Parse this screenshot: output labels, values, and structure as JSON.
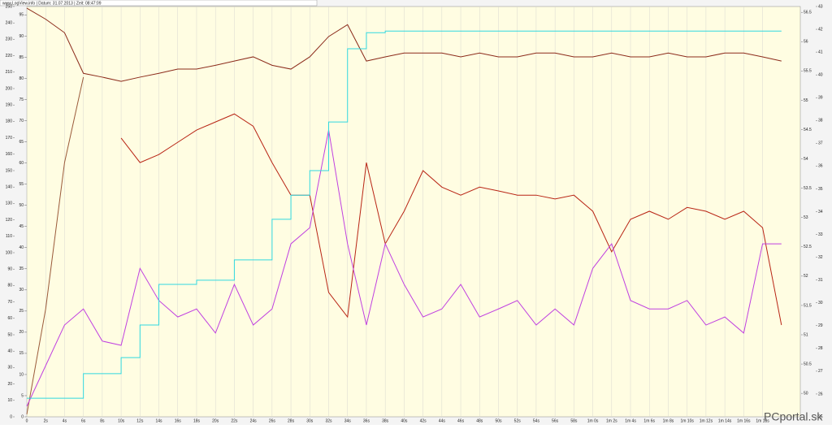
{
  "header": {
    "text": "www.LogView.info  |  Datum: 31.07.2013  |  Zeit: 08:47:09"
  },
  "watermark": "PCportal.sk",
  "chart_data": {
    "type": "line",
    "background": "#fffde2",
    "grid": true,
    "x": [
      0,
      2,
      4,
      6,
      8,
      10,
      12,
      14,
      16,
      18,
      20,
      22,
      24,
      26,
      28,
      30,
      32,
      34,
      36,
      38,
      40,
      42,
      44,
      46,
      48,
      50,
      52,
      54,
      56,
      58,
      60,
      62,
      64,
      66,
      68,
      70,
      72,
      74,
      76,
      78,
      80
    ],
    "xlim": [
      0,
      82
    ],
    "xticks": [
      0,
      {
        "value": 2,
        "label": "2s"
      },
      {
        "value": 4,
        "label": "4s"
      },
      {
        "value": 6,
        "label": "6s"
      },
      {
        "value": 8,
        "label": "8s"
      },
      {
        "value": 10,
        "label": "10s"
      },
      {
        "value": 12,
        "label": "12s"
      },
      {
        "value": 14,
        "label": "14s"
      },
      {
        "value": 16,
        "label": "16s"
      },
      {
        "value": 18,
        "label": "18s"
      },
      {
        "value": 20,
        "label": "20s"
      },
      {
        "value": 22,
        "label": "22s"
      },
      {
        "value": 24,
        "label": "24s"
      },
      {
        "value": 26,
        "label": "26s"
      },
      {
        "value": 28,
        "label": "28s"
      },
      {
        "value": 30,
        "label": "30s"
      },
      {
        "value": 32,
        "label": "32s"
      },
      {
        "value": 34,
        "label": "34s"
      },
      {
        "value": 36,
        "label": "36s"
      },
      {
        "value": 38,
        "label": "38s"
      },
      {
        "value": 40,
        "label": "40s"
      },
      {
        "value": 42,
        "label": "42s"
      },
      {
        "value": 44,
        "label": "44s"
      },
      {
        "value": 46,
        "label": "46s"
      },
      {
        "value": 48,
        "label": "48s"
      },
      {
        "value": 50,
        "label": "50s"
      },
      {
        "value": 52,
        "label": "52s"
      },
      {
        "value": 54,
        "label": "54s"
      },
      {
        "value": 56,
        "label": "56s"
      },
      {
        "value": 58,
        "label": "58s"
      },
      {
        "value": 60,
        "label": "1m 0s"
      },
      {
        "value": 62,
        "label": "1m 2s"
      },
      {
        "value": 64,
        "label": "1m 4s"
      },
      {
        "value": 66,
        "label": "1m 6s"
      },
      {
        "value": 68,
        "label": "1m 8s"
      },
      {
        "value": 70,
        "label": "1m 10s"
      },
      {
        "value": 72,
        "label": "1m 12s"
      },
      {
        "value": 74,
        "label": "1m 14s"
      },
      {
        "value": 76,
        "label": "1m 16s"
      },
      {
        "value": 78,
        "label": "1m 18s"
      }
    ],
    "ylim": [
      0,
      97
    ],
    "yticks": [
      0,
      5,
      10,
      15,
      20,
      25,
      30,
      35,
      40,
      45,
      50,
      55,
      60,
      65,
      70,
      75,
      80,
      85,
      90,
      95
    ],
    "extra_axes": [
      {
        "side": "left",
        "lim": [
          0,
          250
        ],
        "ticks": [
          0,
          10,
          20,
          30,
          40,
          50,
          60,
          70,
          80,
          90,
          100,
          110,
          120,
          130,
          140,
          150,
          160,
          170,
          180,
          190,
          200,
          210,
          220,
          230,
          240,
          250
        ]
      },
      {
        "side": "right",
        "lim": [
          49.6,
          56.6
        ],
        "ticks": [
          50,
          50.5,
          51,
          51.5,
          52,
          52.5,
          53,
          53.5,
          54,
          54.5,
          55,
          55.5,
          56,
          56.5
        ]
      },
      {
        "side": "right",
        "lim": [
          25,
          43
        ],
        "ticks": [
          25,
          26,
          27,
          28,
          29,
          30,
          31,
          32,
          33,
          34,
          35,
          36,
          37,
          38,
          39,
          40,
          41,
          42,
          43
        ]
      }
    ],
    "series": [
      {
        "color": "#8b2a1a",
        "style": "line",
        "values": [
          96.6,
          94,
          90.8,
          81.2,
          80.3,
          79.3,
          80.3,
          81.2,
          82.2,
          82.2,
          83.1,
          84.1,
          85.1,
          83.1,
          82.2,
          85.1,
          89.9,
          92.7,
          84.1,
          85.1,
          86,
          86,
          86,
          85.1,
          86,
          85.1,
          85.1,
          86,
          86,
          85.1,
          85.1,
          86,
          85.1,
          85.1,
          86,
          85.1,
          85.1,
          86,
          86,
          85.1,
          84.1
        ]
      },
      {
        "color": "#b82414",
        "style": "line",
        "values": [
          null,
          null,
          null,
          null,
          null,
          65.9,
          60.1,
          62,
          64.9,
          67.8,
          69.7,
          71.6,
          68.7,
          60.1,
          52.4,
          52.4,
          29.4,
          23.6,
          60.1,
          40.9,
          48.6,
          58.2,
          54.3,
          52.4,
          54.3,
          53.4,
          52.4,
          52.4,
          51.5,
          52.4,
          48.6,
          39,
          46.7,
          48.6,
          46.7,
          49.5,
          48.6,
          46.7,
          48.6,
          44.7,
          21.7
        ]
      },
      {
        "color": "#9a5a3a",
        "style": "line",
        "values": [
          0.6,
          25.5,
          60.1,
          80.3,
          null,
          null,
          null,
          null,
          null,
          null,
          null,
          null,
          null,
          null,
          null,
          null,
          null,
          null,
          null,
          null,
          null,
          null,
          null,
          null,
          null,
          null,
          null,
          null,
          null,
          null,
          null,
          null,
          null,
          null,
          null,
          null,
          null,
          null,
          null,
          null,
          null
        ]
      },
      {
        "color": "#c040e0",
        "style": "line",
        "values": [
          2.5,
          12.1,
          21.7,
          25.5,
          17.9,
          16.9,
          35.1,
          27.5,
          23.6,
          25.5,
          19.8,
          31.3,
          21.7,
          25.5,
          40.9,
          44.7,
          67.8,
          40.9,
          21.7,
          40.9,
          31.3,
          23.6,
          25.5,
          31.3,
          23.6,
          25.5,
          27.5,
          21.7,
          25.5,
          21.7,
          35.1,
          40.9,
          27.5,
          25.5,
          25.5,
          27.5,
          21.7,
          23.6,
          19.8,
          40.9,
          40.9
        ]
      },
      {
        "color": "#30d8e0",
        "style": "step",
        "values": [
          4.4,
          4.4,
          4.4,
          10.2,
          10.2,
          14,
          21.7,
          31.3,
          31.3,
          32.3,
          32.3,
          37.1,
          37.1,
          46.7,
          52.4,
          58.2,
          69.7,
          87,
          90.8,
          91.2,
          91.2,
          91.2,
          91.2,
          91.2,
          91.2,
          91.2,
          91.2,
          91.2,
          91.2,
          91.2,
          91.2,
          91.2,
          91.2,
          91.2,
          91.2,
          91.2,
          91.2,
          91.2,
          91.2,
          91.2,
          91.2
        ]
      }
    ]
  }
}
